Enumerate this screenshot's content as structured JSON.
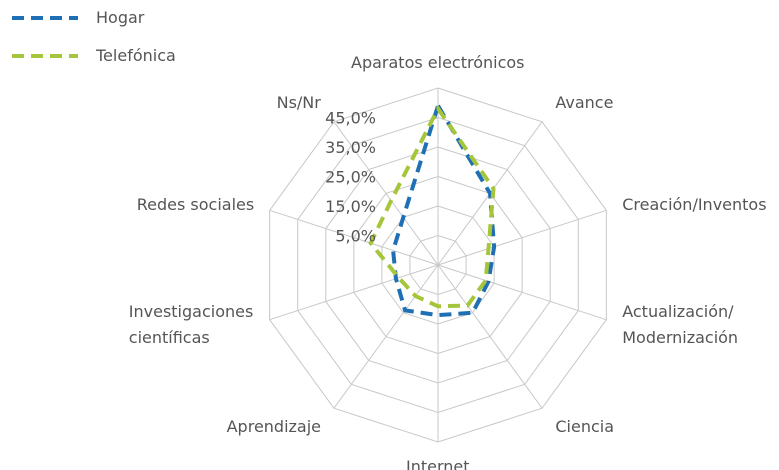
{
  "chart_data": {
    "type": "radar",
    "categories": [
      "Aparatos electrónicos",
      "Avance",
      "Creación/Inventos",
      "Actualización/\nModernización",
      "Ciencia",
      "Internet",
      "Aprendizaje",
      "Investigaciones\ncientíficas",
      "Redes sociales",
      "Ns/Nr"
    ],
    "series": [
      {
        "name": "Hogar",
        "color": "#1f6fb4",
        "values": [
          49,
          25,
          15,
          13,
          15,
          12,
          14,
          10,
          11,
          15
        ]
      },
      {
        "name": "Telefónica",
        "color": "#a5c53a",
        "values": [
          48,
          27,
          13,
          12,
          12,
          9,
          8,
          9,
          19,
          22
        ]
      }
    ],
    "ylim": [
      -5,
      55
    ],
    "yticks": [
      {
        "value": 5,
        "label": "5,0%"
      },
      {
        "value": 15,
        "label": "15,0%"
      },
      {
        "value": 25,
        "label": "25,0%"
      },
      {
        "value": 35,
        "label": "35,0%"
      },
      {
        "value": 45,
        "label": "45,0%"
      }
    ],
    "legend": "top-left",
    "grid": true
  }
}
